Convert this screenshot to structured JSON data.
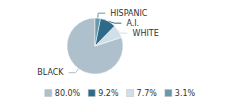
{
  "chart_data": {
    "type": "pie",
    "categories": [
      "BLACK",
      "WHITE",
      "A.I.",
      "HISPANIC"
    ],
    "values": [
      80.0,
      7.7,
      9.2,
      3.1
    ],
    "colors": [
      "#adc0cc",
      "#cfe0ea",
      "#2e6b8a",
      "#6899aa"
    ],
    "legend": "bottom",
    "legend_entries": [
      {
        "label": "80.0%",
        "color": "#adc0cc"
      },
      {
        "label": "9.2%",
        "color": "#2e6b8a"
      },
      {
        "label": "7.7%",
        "color": "#cfe0ea"
      },
      {
        "label": "3.1%",
        "color": "#6899aa"
      }
    ]
  }
}
